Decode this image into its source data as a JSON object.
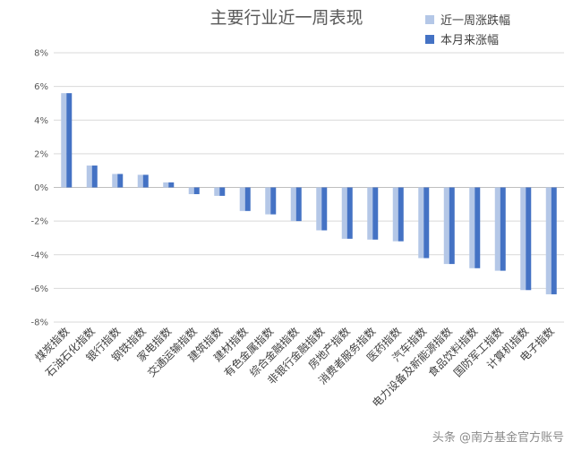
{
  "chart_data": {
    "type": "bar",
    "title": "主要行业近一周表现",
    "categories": [
      "煤炭指数",
      "石油石化指数",
      "银行指数",
      "钢铁指数",
      "家电指数",
      "交通运输指数",
      "建筑指数",
      "建材指数",
      "有色金属指数",
      "综合金融指数",
      "非银行金融指数",
      "房地产指数",
      "消费者服务指数",
      "医药指数",
      "汽车指数",
      "电力设备及新能源指数",
      "食品饮料指数",
      "国防军工指数",
      "计算机指数",
      "电子指数"
    ],
    "series": [
      {
        "name": "近一周涨跌幅",
        "color": "#b4c7e7",
        "values": [
          5.6,
          1.3,
          0.8,
          0.75,
          0.3,
          -0.4,
          -0.5,
          -1.4,
          -1.6,
          -2.0,
          -2.55,
          -3.05,
          -3.1,
          -3.2,
          -4.2,
          -4.55,
          -4.8,
          -4.95,
          -6.1,
          -6.35
        ]
      },
      {
        "name": "本月来涨幅",
        "color": "#4472c4",
        "values": [
          5.6,
          1.3,
          0.8,
          0.75,
          0.3,
          -0.4,
          -0.5,
          -1.4,
          -1.6,
          -2.0,
          -2.55,
          -3.05,
          -3.1,
          -3.2,
          -4.2,
          -4.55,
          -4.8,
          -4.95,
          -6.1,
          -6.35
        ]
      }
    ],
    "ylim": [
      -8,
      8
    ],
    "yticks": [
      "-8%",
      "-6%",
      "-4%",
      "-2%",
      "0%",
      "2%",
      "4%",
      "6%",
      "8%"
    ],
    "ytick_values": [
      -8,
      -6,
      -4,
      -2,
      0,
      2,
      4,
      6,
      8
    ],
    "grid": true,
    "legend_position": "top-right"
  },
  "watermark": "头条 @南方基金官方账号"
}
